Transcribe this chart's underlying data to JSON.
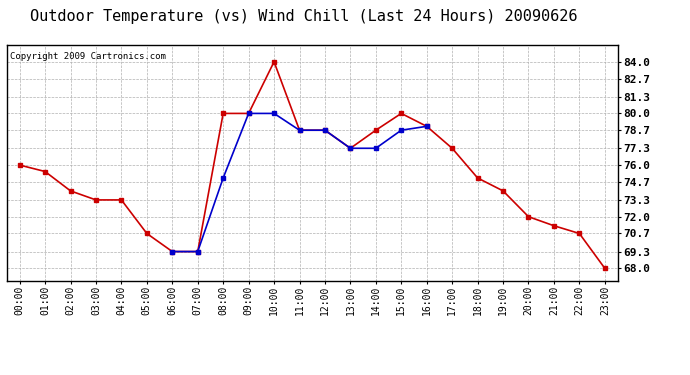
{
  "title": "Outdoor Temperature (vs) Wind Chill (Last 24 Hours) 20090626",
  "copyright": "Copyright 2009 Cartronics.com",
  "temp_hours": [
    0,
    1,
    2,
    3,
    4,
    5,
    6,
    7,
    8,
    9,
    10,
    11,
    12,
    13,
    14,
    15,
    16,
    17,
    18,
    19,
    20,
    21,
    22,
    23
  ],
  "temp_values": [
    76.0,
    75.5,
    74.0,
    73.3,
    73.3,
    70.7,
    69.3,
    69.3,
    80.0,
    80.0,
    84.0,
    78.7,
    78.7,
    77.3,
    78.7,
    80.0,
    79.0,
    77.3,
    75.0,
    74.0,
    72.0,
    71.3,
    70.7,
    68.0
  ],
  "wind_hours": [
    6,
    7,
    8,
    9,
    10,
    11,
    12,
    13,
    14,
    15,
    16
  ],
  "wind_values": [
    69.3,
    69.3,
    75.0,
    80.0,
    80.0,
    78.7,
    78.7,
    77.3,
    77.3,
    78.7,
    79.0
  ],
  "temp_color": "#cc0000",
  "wind_color": "#0000cc",
  "bg_color": "#ffffff",
  "plot_bg_color": "#ffffff",
  "grid_color": "#b0b0b0",
  "ylim_min": 67.0,
  "ylim_max": 85.3,
  "yticks": [
    68.0,
    69.3,
    70.7,
    72.0,
    73.3,
    74.7,
    76.0,
    77.3,
    78.7,
    80.0,
    81.3,
    82.7,
    84.0
  ],
  "title_fontsize": 11,
  "copyright_fontsize": 6.5,
  "tick_fontsize": 7,
  "ytick_fontsize": 8,
  "marker": "s",
  "marker_size": 2.5,
  "linewidth": 1.2
}
